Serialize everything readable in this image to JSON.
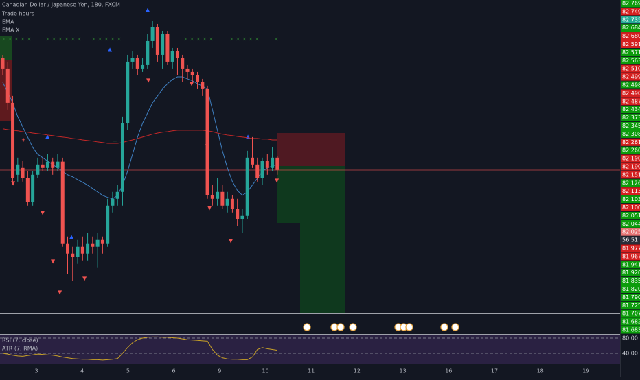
{
  "header": {
    "title": "Canadian Dollar / Japanese Yen, 180, FXCM",
    "indicators": [
      "Trade hours",
      "EMA",
      "EMA X"
    ]
  },
  "price_chart": {
    "ylim": [
      81.7,
      82.8
    ],
    "up_color": "#26a69a",
    "down_color": "#ef5350",
    "candles": [
      {
        "o": 82.596,
        "h": 82.608,
        "l": 82.536,
        "c": 82.56
      },
      {
        "o": 82.56,
        "h": 82.584,
        "l": 82.416,
        "c": 82.44
      },
      {
        "o": 82.44,
        "h": 82.464,
        "l": 82.152,
        "c": 82.176
      },
      {
        "o": 82.188,
        "h": 82.248,
        "l": 82.164,
        "c": 82.224
      },
      {
        "o": 82.212,
        "h": 82.236,
        "l": 82.164,
        "c": 82.176
      },
      {
        "o": 82.176,
        "h": 82.2,
        "l": 82.08,
        "c": 82.092
      },
      {
        "o": 82.092,
        "h": 82.2,
        "l": 82.08,
        "c": 82.188
      },
      {
        "o": 82.188,
        "h": 82.248,
        "l": 82.176,
        "c": 82.224
      },
      {
        "o": 82.224,
        "h": 82.248,
        "l": 82.2,
        "c": 82.212
      },
      {
        "o": 82.212,
        "h": 82.26,
        "l": 82.2,
        "c": 82.234
      },
      {
        "o": 82.234,
        "h": 82.248,
        "l": 82.188,
        "c": 82.212
      },
      {
        "o": 82.212,
        "h": 82.26,
        "l": 82.2,
        "c": 82.234
      },
      {
        "o": 82.234,
        "h": 82.248,
        "l": 81.936,
        "c": 81.948
      },
      {
        "o": 81.948,
        "h": 81.972,
        "l": 81.84,
        "c": 81.912
      },
      {
        "o": 81.912,
        "h": 81.936,
        "l": 81.816,
        "c": 81.9
      },
      {
        "o": 81.9,
        "h": 81.96,
        "l": 81.876,
        "c": 81.936
      },
      {
        "o": 81.936,
        "h": 81.972,
        "l": 81.888,
        "c": 81.912
      },
      {
        "o": 81.912,
        "h": 81.984,
        "l": 81.888,
        "c": 81.948
      },
      {
        "o": 81.948,
        "h": 81.972,
        "l": 81.912,
        "c": 81.936
      },
      {
        "o": 81.936,
        "h": 81.984,
        "l": 81.864,
        "c": 81.96
      },
      {
        "o": 81.96,
        "h": 81.972,
        "l": 81.912,
        "c": 81.948
      },
      {
        "o": 81.948,
        "h": 82.104,
        "l": 81.936,
        "c": 82.08
      },
      {
        "o": 82.08,
        "h": 82.128,
        "l": 82.056,
        "c": 82.104
      },
      {
        "o": 82.104,
        "h": 82.152,
        "l": 82.08,
        "c": 82.128
      },
      {
        "o": 82.128,
        "h": 82.392,
        "l": 82.08,
        "c": 82.368
      },
      {
        "o": 82.368,
        "h": 82.608,
        "l": 82.344,
        "c": 82.584
      },
      {
        "o": 82.584,
        "h": 82.62,
        "l": 82.56,
        "c": 82.596
      },
      {
        "o": 82.596,
        "h": 82.608,
        "l": 82.536,
        "c": 82.56
      },
      {
        "o": 82.56,
        "h": 82.596,
        "l": 82.548,
        "c": 82.572
      },
      {
        "o": 82.572,
        "h": 82.68,
        "l": 82.56,
        "c": 82.656
      },
      {
        "o": 82.656,
        "h": 82.728,
        "l": 82.632,
        "c": 82.704
      },
      {
        "o": 82.704,
        "h": 82.716,
        "l": 82.584,
        "c": 82.608
      },
      {
        "o": 82.608,
        "h": 82.692,
        "l": 82.56,
        "c": 82.68
      },
      {
        "o": 82.68,
        "h": 82.692,
        "l": 82.572,
        "c": 82.584
      },
      {
        "o": 82.584,
        "h": 82.632,
        "l": 82.56,
        "c": 82.62
      },
      {
        "o": 82.62,
        "h": 82.632,
        "l": 82.536,
        "c": 82.596
      },
      {
        "o": 82.596,
        "h": 82.608,
        "l": 82.512,
        "c": 82.56
      },
      {
        "o": 82.56,
        "h": 82.572,
        "l": 82.524,
        "c": 82.548
      },
      {
        "o": 82.548,
        "h": 82.56,
        "l": 82.512,
        "c": 82.536
      },
      {
        "o": 82.536,
        "h": 82.548,
        "l": 82.488,
        "c": 82.512
      },
      {
        "o": 82.512,
        "h": 82.524,
        "l": 82.464,
        "c": 82.488
      },
      {
        "o": 82.488,
        "h": 82.5,
        "l": 82.104,
        "c": 82.116
      },
      {
        "o": 82.116,
        "h": 82.152,
        "l": 82.08,
        "c": 82.104
      },
      {
        "o": 82.104,
        "h": 82.176,
        "l": 82.08,
        "c": 82.128
      },
      {
        "o": 82.128,
        "h": 82.152,
        "l": 82.068,
        "c": 82.08
      },
      {
        "o": 82.08,
        "h": 82.128,
        "l": 82.056,
        "c": 82.104
      },
      {
        "o": 82.104,
        "h": 82.116,
        "l": 82.056,
        "c": 82.068
      },
      {
        "o": 82.068,
        "h": 82.104,
        "l": 82.008,
        "c": 82.032
      },
      {
        "o": 82.032,
        "h": 82.068,
        "l": 81.984,
        "c": 82.044
      },
      {
        "o": 82.044,
        "h": 82.272,
        "l": 82.032,
        "c": 82.248
      },
      {
        "o": 82.248,
        "h": 82.32,
        "l": 82.212,
        "c": 82.224
      },
      {
        "o": 82.224,
        "h": 82.248,
        "l": 82.164,
        "c": 82.176
      },
      {
        "o": 82.176,
        "h": 82.248,
        "l": 82.152,
        "c": 82.236
      },
      {
        "o": 82.236,
        "h": 82.26,
        "l": 82.188,
        "c": 82.212
      },
      {
        "o": 82.212,
        "h": 82.284,
        "l": 82.2,
        "c": 82.248
      },
      {
        "o": 82.248,
        "h": 82.253,
        "l": 82.188,
        "c": 82.205
      }
    ],
    "ema_fast": {
      "color": "#3f7fc0",
      "values": [
        82.512,
        82.476,
        82.44,
        82.392,
        82.356,
        82.32,
        82.284,
        82.26,
        82.248,
        82.236,
        82.224,
        82.212,
        82.2,
        82.188,
        82.181,
        82.171,
        82.162,
        82.152,
        82.14,
        82.128,
        82.116,
        82.109,
        82.104,
        82.116,
        82.152,
        82.2,
        82.26,
        82.32,
        82.368,
        82.404,
        82.44,
        82.464,
        82.488,
        82.507,
        82.522,
        82.531,
        82.531,
        82.524,
        82.517,
        82.507,
        82.498,
        82.488,
        82.416,
        82.344,
        82.272,
        82.212,
        82.164,
        82.133,
        82.116,
        82.128,
        82.152,
        82.176,
        82.2,
        82.212,
        82.219,
        82.224
      ]
    },
    "ema_slow": {
      "color": "#c62828",
      "values": [
        82.349,
        82.346,
        82.344,
        82.342,
        82.339,
        82.337,
        82.334,
        82.332,
        82.33,
        82.327,
        82.325,
        82.322,
        82.32,
        82.318,
        82.315,
        82.313,
        82.31,
        82.308,
        82.306,
        82.303,
        82.301,
        82.298,
        82.298,
        82.298,
        82.301,
        82.306,
        82.31,
        82.315,
        82.32,
        82.325,
        82.33,
        82.334,
        82.337,
        82.339,
        82.342,
        82.344,
        82.344,
        82.344,
        82.344,
        82.344,
        82.344,
        82.342,
        82.339,
        82.334,
        82.33,
        82.327,
        82.325,
        82.322,
        82.32,
        82.318,
        82.315,
        82.315,
        82.313,
        82.313,
        82.31,
        82.31
      ]
    }
  },
  "price_axis_labels": [
    {
      "text": "82.769",
      "color": "#0c9c0c"
    },
    {
      "text": "82.749",
      "color": "#d42020"
    },
    {
      "text": "82.735",
      "color": "#22ab94"
    },
    {
      "text": "82.684",
      "color": "#0c9c0c"
    },
    {
      "text": "82.680",
      "color": "#d42020"
    },
    {
      "text": "82.591",
      "color": "#d42020"
    },
    {
      "text": "82.571",
      "color": "#0c9c0c"
    },
    {
      "text": "82.563",
      "color": "#0c9c0c"
    },
    {
      "text": "82.510",
      "color": "#d42020"
    },
    {
      "text": "82.499",
      "color": "#d42020"
    },
    {
      "text": "82.498",
      "color": "#0c9c0c"
    },
    {
      "text": "82.490",
      "color": "#d42020"
    },
    {
      "text": "82.487",
      "color": "#d42020"
    },
    {
      "text": "82.434",
      "color": "#0c9c0c"
    },
    {
      "text": "82.373",
      "color": "#0c9c0c"
    },
    {
      "text": "82.345",
      "color": "#0c9c0c"
    },
    {
      "text": "82.308",
      "color": "#0c9c0c"
    },
    {
      "text": "82.261",
      "color": "#d42020"
    },
    {
      "text": "82.260",
      "color": "#0c9c0c"
    },
    {
      "text": "82.190",
      "color": "#d42020"
    },
    {
      "text": "82.190",
      "color": "#d42020"
    },
    {
      "text": "82.151",
      "color": "#d42020"
    },
    {
      "text": "82.126",
      "color": "#0c9c0c"
    },
    {
      "text": "82.113",
      "color": "#d42020"
    },
    {
      "text": "82.103",
      "color": "#0c9c0c"
    },
    {
      "text": "82.100",
      "color": "#d42020"
    },
    {
      "text": "82.051",
      "color": "#0c9c0c"
    },
    {
      "text": "82.044",
      "color": "#0c9c0c"
    },
    {
      "text": "82.025",
      "color": "#e57373"
    },
    {
      "text": "56:51",
      "color": "#2a2e39"
    },
    {
      "text": "81.977",
      "color": "#d42020"
    },
    {
      "text": "81.967",
      "color": "#d42020"
    },
    {
      "text": "81.941",
      "color": "#0c9c0c"
    },
    {
      "text": "81.920",
      "color": "#0c9c0c"
    },
    {
      "text": "81.835",
      "color": "#0c9c0c"
    },
    {
      "text": "81.820",
      "color": "#0c9c0c"
    },
    {
      "text": "81.790",
      "color": "#0c9c0c"
    },
    {
      "text": "81.725",
      "color": "#0c9c0c"
    },
    {
      "text": "81.707",
      "color": "#0c9c0c"
    },
    {
      "text": "81.682",
      "color": "#0c9c0c"
    },
    {
      "text": "81.683",
      "color": "#0c9c0c"
    }
  ],
  "rsi": {
    "labels": [
      "RSI (7, close)",
      "ATR (7, RMA)"
    ],
    "color": "#c9a227",
    "yticks": [
      {
        "value": 80,
        "label": "80.00"
      },
      {
        "value": 40,
        "label": "40.00"
      }
    ],
    "values": [
      40,
      38,
      35,
      33,
      32,
      34,
      36,
      38,
      37,
      36,
      35,
      33,
      30,
      28,
      26,
      25,
      24,
      24,
      23,
      23,
      22,
      23,
      24,
      26,
      40,
      55,
      68,
      76,
      80,
      82,
      83,
      83,
      82,
      82,
      81,
      80,
      78,
      76,
      75,
      74,
      73,
      72,
      50,
      35,
      28,
      25,
      24,
      24,
      23,
      23,
      30,
      50,
      55,
      52,
      50,
      48
    ]
  },
  "time_axis": {
    "labels": [
      "3",
      "4",
      "5",
      "6",
      "9",
      "10",
      "11",
      "12",
      "13",
      "16",
      "17",
      "18",
      "19"
    ]
  }
}
